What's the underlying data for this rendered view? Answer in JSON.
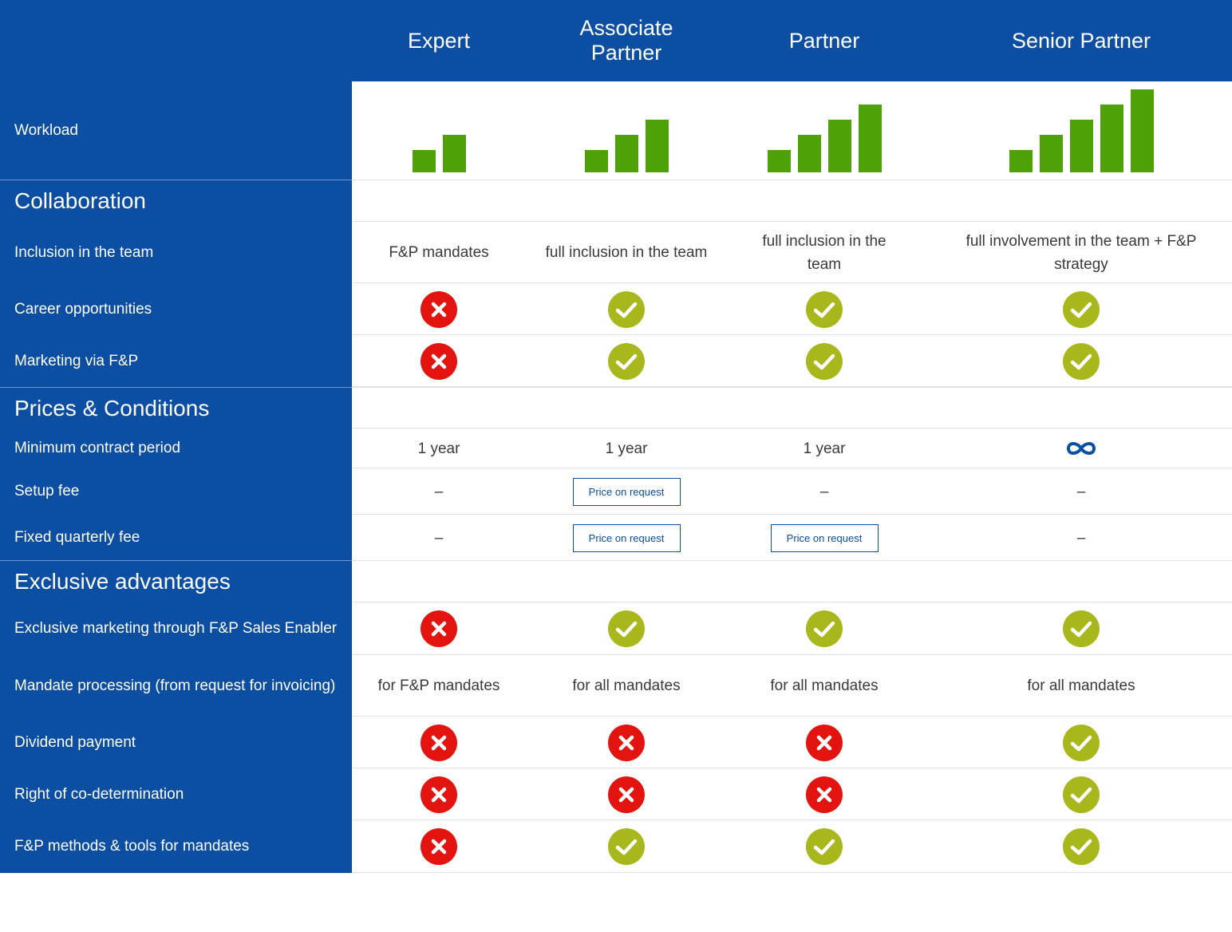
{
  "colors": {
    "header_bg": "#0b4ea2",
    "bar_green": "#4ea106",
    "check_green": "#a8b81c",
    "cross_red": "#e3140f"
  },
  "columns": [
    {
      "label": "Expert"
    },
    {
      "label": "Associate Partner"
    },
    {
      "label": "Partner"
    },
    {
      "label": "Senior Partner"
    }
  ],
  "workload": {
    "label": "Workload",
    "levels": [
      2,
      3,
      4,
      5
    ]
  },
  "sections": [
    {
      "title": "Collaboration",
      "rows": [
        {
          "label": "Inclusion in the team",
          "type": "text",
          "values": [
            "F&P mandates",
            "full inclusion in the team",
            "full inclusion in the team",
            "full involvement in the team + F&P strategy"
          ]
        },
        {
          "label": "Career opportunities",
          "type": "icon",
          "values": [
            "cross",
            "check",
            "check",
            "check"
          ]
        },
        {
          "label": "Marketing via F&P",
          "type": "icon",
          "values": [
            "cross",
            "check",
            "check",
            "check"
          ]
        }
      ]
    },
    {
      "title": "Prices & Conditions",
      "rows": [
        {
          "label": "Minimum contract period",
          "type": "mixed",
          "values": [
            "1 year",
            "1 year",
            "1 year",
            "infinity"
          ]
        },
        {
          "label": "Setup fee",
          "type": "mixed",
          "values": [
            "–",
            "Price on request",
            "–",
            "–"
          ]
        },
        {
          "label": "Fixed quarterly fee",
          "type": "mixed",
          "values": [
            "–",
            "Price on request",
            "Price on request",
            "–"
          ]
        }
      ]
    },
    {
      "title": "Exclusive advantages",
      "rows": [
        {
          "label": "Exclusive marketing through F&P Sales Enabler",
          "type": "icon",
          "values": [
            "cross",
            "check",
            "check",
            "check"
          ]
        },
        {
          "label": "Mandate processing (from request for invoicing)",
          "type": "text",
          "values": [
            "for F&P mandates",
            "for all mandates",
            "for all mandates",
            "for all mandates"
          ]
        },
        {
          "label": "Dividend payment",
          "type": "icon",
          "values": [
            "cross",
            "cross",
            "cross",
            "check"
          ]
        },
        {
          "label": "Right of co-determination",
          "type": "icon",
          "values": [
            "cross",
            "cross",
            "cross",
            "check"
          ]
        },
        {
          "label": "F&P methods & tools for mandates",
          "type": "icon",
          "values": [
            "cross",
            "check",
            "check",
            "check"
          ]
        }
      ]
    }
  ],
  "price_button_label": "Price on request",
  "icon_names": {
    "check": "check-circle-icon",
    "cross": "cross-circle-icon",
    "infinity": "infinity-icon"
  }
}
